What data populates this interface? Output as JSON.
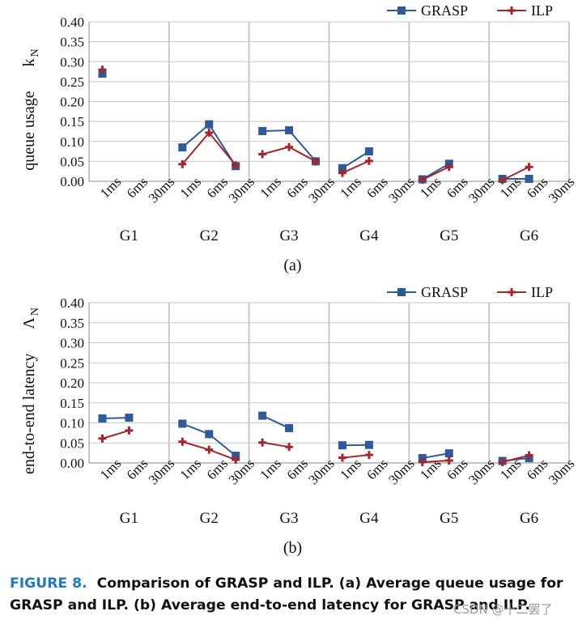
{
  "colors": {
    "grasp": "#2e5a9a",
    "ilp": "#a0282d",
    "grid": "#c8c8c8",
    "axis": "#888888",
    "caption_label": "#1f7ac1"
  },
  "caption": {
    "label": "FIGURE 8.",
    "text": "Comparison of GRASP and ILP. (a) Average queue usage for GRASP and ILP. (b) Average end-to-end latency for GRASP and ILP."
  },
  "watermark": "CSDN @十二罢了",
  "chart_data": [
    {
      "type": "line",
      "panel_label": "(a)",
      "ylabel_symbol": "k",
      "ylabel_subscript": "N",
      "ylabel": "queue usage",
      "ylim": [
        0,
        0.4
      ],
      "yticks": [
        "0.00",
        "0.05",
        "0.10",
        "0.15",
        "0.20",
        "0.25",
        "0.30",
        "0.35",
        "0.40"
      ],
      "groups": [
        "G1",
        "G2",
        "G3",
        "G4",
        "G5",
        "G6"
      ],
      "categories": [
        "1ms",
        "6ms",
        "30ms"
      ],
      "legend_position": "top-right",
      "series": [
        {
          "name": "GRASP",
          "marker": "square",
          "values": [
            [
              0.27,
              null,
              null
            ],
            [
              0.085,
              0.143,
              0.038
            ],
            [
              0.126,
              0.128,
              0.05
            ],
            [
              0.033,
              0.075,
              null
            ],
            [
              0.005,
              0.044,
              null
            ],
            [
              0.006,
              0.006,
              null
            ]
          ]
        },
        {
          "name": "ILP",
          "marker": "plus",
          "values": [
            [
              0.28,
              null,
              null
            ],
            [
              0.043,
              0.122,
              0.04
            ],
            [
              0.068,
              0.086,
              0.05
            ],
            [
              0.021,
              0.051,
              null
            ],
            [
              0.004,
              0.036,
              null
            ],
            [
              0.003,
              0.036,
              null
            ]
          ]
        }
      ]
    },
    {
      "type": "line",
      "panel_label": "(b)",
      "ylabel_symbol": "Λ",
      "ylabel_subscript": "N",
      "ylabel": "end-to-end latency",
      "ylim": [
        0,
        0.4
      ],
      "yticks": [
        "0.00",
        "0.05",
        "0.10",
        "0.15",
        "0.20",
        "0.25",
        "0.30",
        "0.35",
        "0.40"
      ],
      "groups": [
        "G1",
        "G2",
        "G3",
        "G4",
        "G5",
        "G6"
      ],
      "categories": [
        "1ms",
        "6ms",
        "30ms"
      ],
      "legend_position": "top-right",
      "series": [
        {
          "name": "GRASP",
          "marker": "square",
          "values": [
            [
              0.111,
              0.113,
              null
            ],
            [
              0.098,
              0.072,
              0.018
            ],
            [
              0.118,
              0.087,
              null
            ],
            [
              0.044,
              0.045,
              null
            ],
            [
              0.012,
              0.024,
              null
            ],
            [
              0.005,
              0.012,
              null
            ]
          ]
        },
        {
          "name": "ILP",
          "marker": "plus",
          "values": [
            [
              0.061,
              0.081,
              null
            ],
            [
              0.053,
              0.033,
              0.008
            ],
            [
              0.051,
              0.04,
              null
            ],
            [
              0.013,
              0.02,
              null
            ],
            [
              0.002,
              0.006,
              null
            ],
            [
              0.002,
              0.019,
              null
            ]
          ]
        }
      ]
    }
  ]
}
